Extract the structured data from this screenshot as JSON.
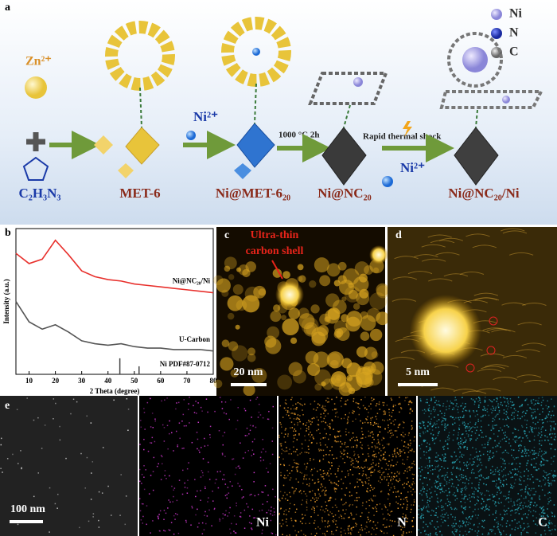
{
  "panel_a": {
    "label": "a",
    "legend": [
      "Ni",
      "N",
      "C"
    ],
    "ions": [
      "Zn²⁺",
      "Ni²⁺",
      "Ni²⁺"
    ],
    "conditions": [
      "1000 °C 2h",
      "Rapid thermal shock"
    ],
    "materials": [
      "C₂H₃N₃",
      "MET-6",
      "Ni@MET-6₂₀",
      "Ni@NC₂₀",
      "Ni@NC₂₀/Ni"
    ]
  },
  "chart_data": {
    "type": "line",
    "panel_label": "b",
    "xlabel": "2 Theta (degree)",
    "ylabel": "Intensity (a.u.)",
    "x": [
      5,
      10,
      15,
      20,
      25,
      30,
      35,
      40,
      45,
      50,
      55,
      60,
      65,
      70,
      75,
      80
    ],
    "xlim": [
      5,
      80
    ],
    "xticks": [
      10,
      20,
      30,
      40,
      50,
      60,
      70,
      80
    ],
    "ylim": [
      0,
      10
    ],
    "series": [
      {
        "name": "Ni@NC₂₀/Ni",
        "color": "#e8302c",
        "values": [
          8.3,
          7.6,
          7.9,
          9.2,
          8.2,
          7.1,
          6.7,
          6.5,
          6.4,
          6.2,
          6.1,
          6.0,
          5.9,
          5.8,
          5.7,
          5.6
        ]
      },
      {
        "name": "U-Carbon",
        "color": "#555555",
        "values": [
          5.0,
          3.6,
          3.1,
          3.4,
          2.9,
          2.3,
          2.1,
          2.0,
          2.1,
          1.9,
          1.8,
          1.8,
          1.7,
          1.7,
          1.7,
          1.6
        ]
      }
    ],
    "reference": {
      "name": "Ni PDF#87-0712",
      "color": "#444444",
      "x": [
        44.5,
        51.8
      ],
      "values": [
        1.1,
        0.55
      ]
    }
  },
  "panel_c": {
    "label": "c",
    "annotation": [
      "Ultra-thin",
      "carbon shell"
    ],
    "scale_bar": "20 nm"
  },
  "panel_d": {
    "label": "d",
    "scale_bar": "5 nm"
  },
  "panel_e": {
    "label": "e",
    "scale_bar": "100 nm",
    "maps": [
      "Ni",
      "N",
      "C"
    ]
  }
}
